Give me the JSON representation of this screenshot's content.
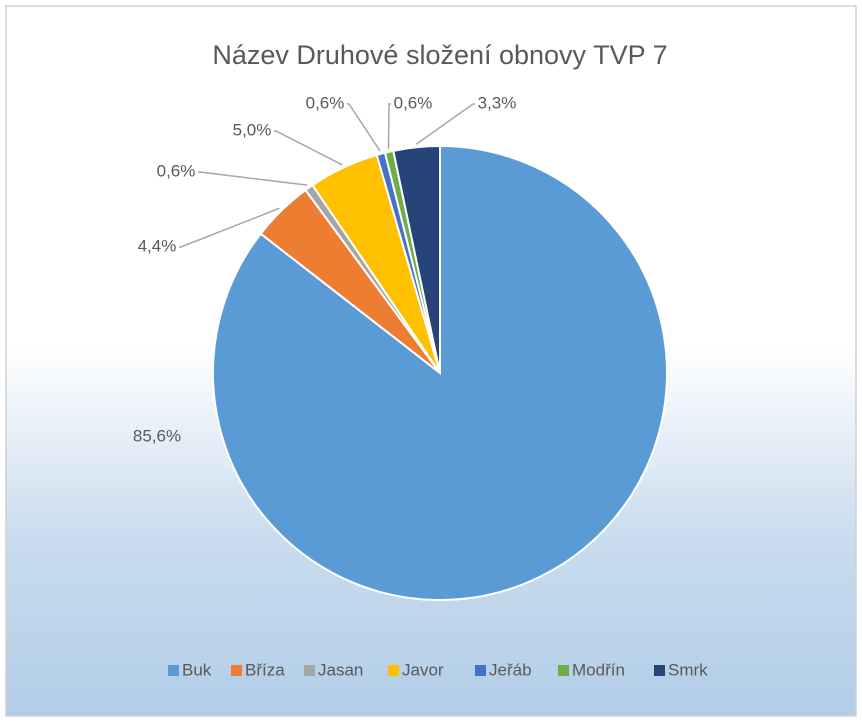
{
  "chart_data": {
    "type": "pie",
    "title": "Název Druhové složení obnovy TVP 7",
    "series": [
      {
        "name": "Buk",
        "color": "#5b9bd5",
        "values": [
          85.6
        ],
        "value_labels": [
          "85,6%"
        ]
      },
      {
        "name": "Bříza",
        "color": "#ed7d31",
        "values": [
          4.4
        ],
        "value_labels": [
          "4,4%"
        ]
      },
      {
        "name": "Jasan",
        "color": "#a5a5a5",
        "values": [
          0.6
        ],
        "value_labels": [
          "0,6%"
        ]
      },
      {
        "name": "Javor",
        "color": "#ffc000",
        "values": [
          5.0
        ],
        "value_labels": [
          "5,0%"
        ]
      },
      {
        "name": "Jeřáb",
        "color": "#4472c4",
        "values": [
          0.6
        ],
        "value_labels": [
          "0,6%"
        ]
      },
      {
        "name": "Modřín",
        "color": "#70ad47",
        "values": [
          0.6
        ],
        "value_labels": [
          "0,6%"
        ]
      },
      {
        "name": "Smrk",
        "color": "#264478",
        "values": [
          3.3
        ],
        "value_labels": [
          "3,3%"
        ]
      }
    ],
    "legend": "bottom"
  }
}
